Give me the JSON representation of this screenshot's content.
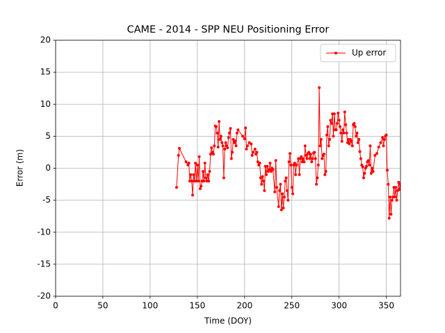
{
  "chart_data": {
    "type": "line",
    "title": "CAME - 2014 - SPP NEU Positioning Error",
    "xlabel": "Time (DOY)",
    "ylabel": "Error (m)",
    "x": [
      128,
      130,
      131,
      138,
      140,
      141,
      142,
      143,
      144,
      145,
      146,
      147,
      148,
      149,
      150,
      151,
      152,
      153,
      154,
      155,
      156,
      157,
      158,
      159,
      160,
      161,
      162,
      163,
      164,
      165,
      166,
      167,
      168,
      169,
      170,
      171,
      172,
      173,
      174,
      175,
      176,
      177,
      178,
      179,
      180,
      181,
      182,
      183,
      184,
      185,
      186,
      187,
      188,
      189,
      190,
      191,
      192,
      193,
      198,
      200,
      201,
      202,
      203,
      205,
      207,
      208,
      209,
      211,
      212,
      213,
      214,
      215,
      216,
      217,
      218,
      219,
      220,
      221,
      222,
      223,
      224,
      225,
      226,
      227,
      228,
      229,
      230,
      232,
      233,
      234,
      236,
      237,
      238,
      239,
      240,
      241,
      242,
      243,
      244,
      245,
      246,
      247,
      248,
      249,
      250,
      251,
      252,
      253,
      254,
      255,
      257,
      258,
      259,
      260,
      261,
      262,
      263,
      264,
      265,
      266,
      267,
      268,
      269,
      270,
      271,
      272,
      273,
      274,
      275,
      276,
      277,
      278,
      279,
      280,
      281,
      282,
      283,
      284,
      285,
      286,
      287,
      288,
      289,
      290,
      291,
      292,
      293,
      294,
      295,
      296,
      297,
      298,
      299,
      300,
      301,
      302,
      303,
      304,
      305,
      306,
      307,
      308,
      309,
      310,
      311,
      312,
      313,
      314,
      315,
      316,
      317,
      318,
      319,
      320,
      321,
      322,
      323,
      324,
      325,
      326,
      327,
      328,
      329,
      330,
      331,
      332,
      333,
      334,
      335,
      336,
      338,
      340,
      342,
      344,
      346,
      347,
      348,
      349,
      350,
      351,
      352,
      353,
      354,
      355,
      356,
      357,
      358,
      359,
      360,
      361,
      362,
      363,
      364,
      365
    ],
    "series": [
      {
        "name": "Up error",
        "color": "#ff0000",
        "values": [
          -3,
          2,
          3.1,
          1,
          0.5,
          0.8,
          -2,
          -1,
          -2,
          -4.2,
          -1,
          -2,
          0.8,
          -2,
          0.5,
          -2,
          1.8,
          -3.2,
          -2.8,
          -2,
          -0.5,
          -2,
          0.8,
          -1.5,
          -2,
          -1,
          -2,
          -0.5,
          2.2,
          3.2,
          2.5,
          2.2,
          3.5,
          6.6,
          6.5,
          5.5,
          3.3,
          7.3,
          4.5,
          5,
          4,
          3.5,
          -1.5,
          3,
          4,
          3.5,
          3.2,
          4.8,
          5.5,
          6.2,
          1.5,
          2.5,
          4.5,
          4,
          4.3,
          3.5,
          5.5,
          6,
          5,
          4.6,
          6.3,
          3,
          3.5,
          4,
          3.8,
          2,
          2.5,
          3,
          2.2,
          2.5,
          1,
          0.5,
          0.8,
          -1.5,
          -2.5,
          -1.3,
          -2,
          -3.5,
          0.3,
          -1,
          0.3,
          -0.5,
          -0.2,
          0.8,
          -0.5,
          0,
          -0.2,
          -3.7,
          1.2,
          -3,
          -6,
          -3.5,
          -2.5,
          -6.5,
          -4,
          -6.2,
          -4.5,
          -2,
          -1.5,
          -3.5,
          -5,
          1,
          2.3,
          0.5,
          -3,
          -4,
          0.5,
          0.8,
          -1,
          0.5,
          1.5,
          -1,
          1.5,
          1.8,
          1,
          1.5,
          1,
          3.5,
          2,
          1.5,
          2.3,
          2.5,
          1.5,
          2.2,
          1,
          1.5,
          2.4,
          2.5,
          1.5,
          -2.5,
          -1.5,
          0.5,
          12.6,
          3.5,
          4.5,
          1.5,
          2,
          2.2,
          -1,
          -0.5,
          5.2,
          6.5,
          3.5,
          4.5,
          7.5,
          7,
          8.5,
          5,
          8.5,
          6,
          6,
          7,
          8.6,
          7.5,
          6.5,
          5.5,
          4.2,
          6,
          5.5,
          8.8,
          6.8,
          5.5,
          4,
          4.5,
          3.8,
          4.5,
          4.2,
          3.5,
          6.8,
          7,
          6.5,
          5,
          5.5,
          4,
          4.5,
          2.6,
          1.5,
          0.5,
          0.2,
          -1.5,
          -0.8,
          0,
          0.3,
          1,
          1.2,
          0.5,
          3.5,
          -0.8,
          0,
          -0.5,
          2,
          2.3,
          3.3,
          4,
          4.8,
          3.5,
          4.5,
          5,
          5.2,
          -0.3,
          -2.5,
          -7.8,
          -4.5,
          -7.2,
          -5,
          -4.5,
          -3,
          -4.5,
          -3,
          -5,
          -3.5,
          -2.2,
          -3.3,
          -2.5
        ]
      }
    ],
    "xlim": [
      0,
      365
    ],
    "ylim": [
      -20,
      20
    ],
    "xticks": [
      0,
      50,
      100,
      150,
      200,
      250,
      300,
      350
    ],
    "yticks": [
      -20,
      -15,
      -10,
      -5,
      0,
      5,
      10,
      15,
      20
    ],
    "grid": true,
    "legend": "upper right"
  }
}
